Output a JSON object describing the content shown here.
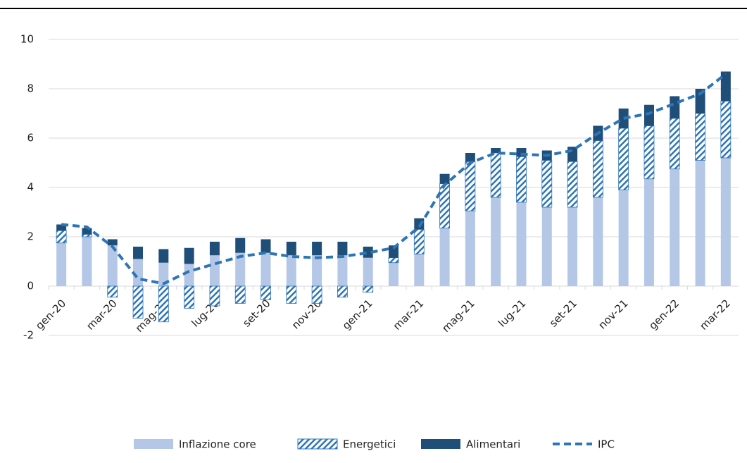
{
  "chart_data": {
    "type": "bar",
    "stacked": true,
    "categories": [
      "gen-20",
      null,
      "mar-20",
      null,
      "mag-20",
      null,
      "lug-20",
      null,
      "set-20",
      null,
      "nov-20",
      null,
      "gen-21",
      null,
      "mar-21",
      null,
      "mag-21",
      null,
      "lug-21",
      null,
      "set-21",
      null,
      "nov-21",
      null,
      "gen-22",
      null,
      "mar-22"
    ],
    "series": [
      {
        "name": "Inflazione core",
        "type": "bar",
        "color": "#b4c7e7",
        "values": [
          1.75,
          2.0,
          1.65,
          1.1,
          0.95,
          0.9,
          1.25,
          1.35,
          1.35,
          1.25,
          1.25,
          1.25,
          1.15,
          0.95,
          1.3,
          2.35,
          3.05,
          3.6,
          3.4,
          3.2,
          3.2,
          3.6,
          3.9,
          4.35,
          4.75,
          5.1,
          5.2
        ]
      },
      {
        "name": "Energetici",
        "type": "bar",
        "color": "#2e75b6",
        "hatch": true,
        "values": [
          0.5,
          0.1,
          -0.45,
          -1.3,
          -1.45,
          -0.9,
          -0.8,
          -0.7,
          -0.55,
          -0.7,
          -0.7,
          -0.45,
          -0.25,
          0.2,
          1.0,
          1.8,
          2.0,
          1.8,
          1.85,
          1.9,
          1.85,
          2.3,
          2.5,
          2.15,
          2.05,
          1.9,
          2.3
        ]
      },
      {
        "name": "Alimentari",
        "type": "bar",
        "color": "#1f4e79",
        "values": [
          0.25,
          0.25,
          0.25,
          0.5,
          0.55,
          0.65,
          0.55,
          0.6,
          0.55,
          0.55,
          0.55,
          0.55,
          0.45,
          0.5,
          0.45,
          0.4,
          0.35,
          0.2,
          0.35,
          0.4,
          0.6,
          0.6,
          0.8,
          0.85,
          0.9,
          1.0,
          1.2
        ]
      },
      {
        "name": "IPC",
        "type": "line",
        "color": "#2e75b6",
        "dashed": true,
        "values": [
          2.5,
          2.4,
          1.6,
          0.3,
          0.1,
          0.6,
          0.9,
          1.2,
          1.35,
          1.2,
          1.15,
          1.2,
          1.35,
          1.55,
          2.4,
          4.1,
          5.0,
          5.4,
          5.35,
          5.3,
          5.5,
          6.2,
          6.8,
          7.0,
          7.4,
          7.8,
          8.6
        ]
      }
    ],
    "ylim": [
      -2.6,
      10.8
    ],
    "yticks": [
      -2,
      0,
      2,
      4,
      6,
      8,
      10
    ],
    "grid": true,
    "legend": "bottom"
  }
}
